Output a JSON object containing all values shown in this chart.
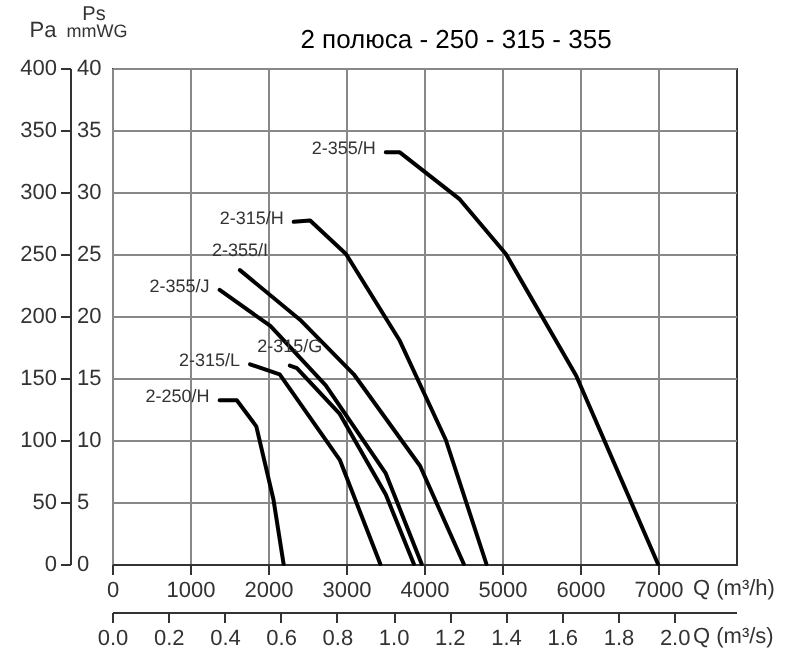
{
  "chart_data": {
    "type": "line",
    "title": "2 полюса - 250 - 315 - 355",
    "xlabel": "Q (m³/h)",
    "x2label": "Q (m³/s)",
    "ylabel": "Pa",
    "y2label": "mmWG",
    "annotations": [
      "Ps"
    ],
    "xlim": [
      0,
      8000
    ],
    "xticks": [
      0,
      1000,
      2000,
      3000,
      4000,
      5000,
      6000,
      7000
    ],
    "x2lim": [
      0,
      2.22
    ],
    "x2ticks": [
      {
        "value": 0,
        "label": "0.0"
      },
      0.2,
      0.4,
      0.6,
      0.8,
      {
        "value": 1,
        "label": "1.0"
      },
      1.2,
      1.4,
      1.6,
      1.8,
      {
        "value": 2,
        "label": "2.0"
      }
    ],
    "ylim": [
      0,
      400
    ],
    "yticks": [
      0,
      50,
      100,
      150,
      200,
      250,
      300,
      350,
      400
    ],
    "y2lim": [
      0,
      40
    ],
    "y2ticks": [
      0,
      5,
      10,
      15,
      20,
      25,
      30,
      35,
      40
    ],
    "grid": true,
    "series": [
      {
        "name": "2-355/H",
        "color": "#000000",
        "x": [
          3510,
          3690,
          4460,
          5050,
          5950,
          7000
        ],
        "values": [
          332,
          332,
          294,
          250,
          152,
          0
        ]
      },
      {
        "name": "2-315/H",
        "color": "#000000",
        "x": [
          2330,
          2540,
          3000,
          3690,
          4280,
          4800
        ],
        "values": [
          276,
          277,
          250,
          180,
          100,
          0
        ]
      },
      {
        "name": "2-355/I",
        "color": "#000000",
        "x": [
          1640,
          2410,
          3100,
          3950,
          4510
        ],
        "values": [
          237,
          197,
          153,
          79,
          0
        ]
      },
      {
        "name": "2-355/J",
        "color": "#000000",
        "x": [
          1380,
          2030,
          2740,
          3510,
          3970
        ],
        "values": [
          221,
          192,
          144,
          73,
          0
        ]
      },
      {
        "name": "2-315/G",
        "color": "#000000",
        "x": [
          2280,
          2370,
          2920,
          3510,
          3870
        ],
        "values": [
          160,
          158,
          121,
          56,
          0
        ]
      },
      {
        "name": "2-315/L",
        "color": "#000000",
        "x": [
          1770,
          2150,
          2920,
          3440
        ],
        "values": [
          161,
          153,
          84,
          0
        ]
      },
      {
        "name": "2-250/H",
        "color": "#000000",
        "x": [
          1380,
          1600,
          1850,
          2070,
          2200
        ],
        "values": [
          132,
          132,
          111,
          52,
          0
        ]
      }
    ]
  }
}
